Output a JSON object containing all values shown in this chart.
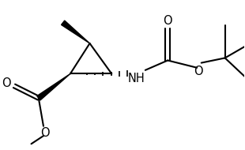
{
  "bg_color": "#ffffff",
  "line_color": "#000000",
  "line_width": 1.5,
  "figsize": [
    3.1,
    1.9
  ],
  "dpi": 100,
  "xlim": [
    0,
    10
  ],
  "ylim": [
    0,
    6.1
  ]
}
